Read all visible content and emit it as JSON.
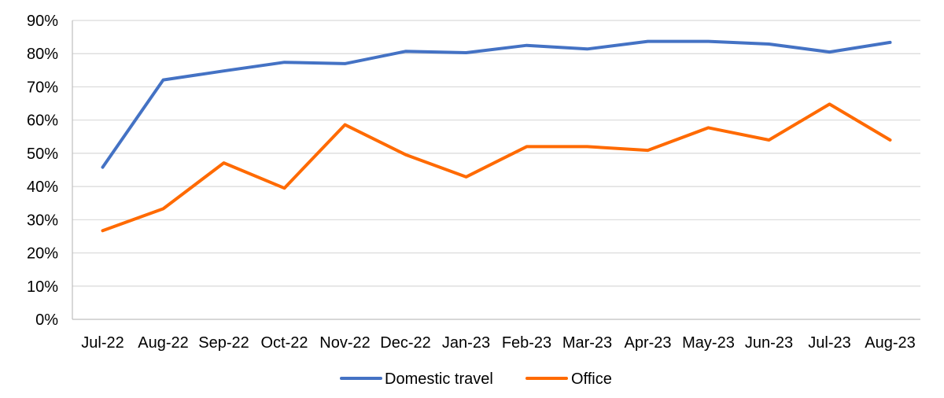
{
  "chart_data": {
    "type": "line",
    "categories": [
      "Jul-22",
      "Aug-22",
      "Sep-22",
      "Oct-22",
      "Nov-22",
      "Dec-22",
      "Jan-23",
      "Feb-23",
      "Mar-23",
      "Apr-23",
      "May-23",
      "Jun-23",
      "Jul-23",
      "Aug-23"
    ],
    "series": [
      {
        "name": "Domestic travel",
        "color": "#4472C4",
        "values": [
          45.8,
          72.1,
          74.8,
          77.4,
          77.0,
          80.7,
          80.3,
          82.5,
          81.4,
          83.7,
          83.7,
          82.9,
          80.5,
          83.4
        ]
      },
      {
        "name": "Office",
        "color": "#FF6A00",
        "values": [
          26.7,
          33.3,
          47.1,
          39.5,
          58.6,
          49.6,
          42.9,
          52.0,
          52.0,
          50.9,
          57.7,
          54.0,
          64.8,
          54.0
        ]
      }
    ],
    "ylim": [
      0,
      90
    ],
    "ytick_step": 10,
    "ytick_format": "percent",
    "grid": "horizontal",
    "legend_position": "bottom",
    "title": "",
    "xlabel": "",
    "ylabel": ""
  }
}
